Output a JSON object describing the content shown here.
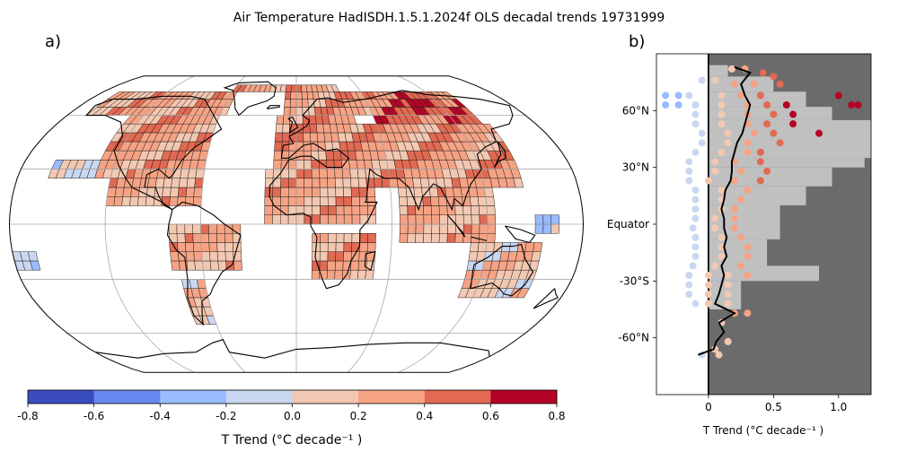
{
  "figure": {
    "title": "Air Temperature HadISDH.1.5.1.2024f OLS decadal trends 19731999",
    "panel_a_label": "a)",
    "panel_b_label": "b)"
  },
  "colorbar": {
    "label": "T Trend (°C decade⁻¹ )",
    "ticks": [
      "-0.8",
      "-0.6",
      "-0.4",
      "-0.2",
      "0.0",
      "0.2",
      "0.4",
      "0.6",
      "0.8"
    ],
    "bins": [
      -0.8,
      -0.6,
      -0.4,
      -0.2,
      0.0,
      0.2,
      0.4,
      0.6,
      0.8
    ],
    "colors": [
      "#3b4cc0",
      "#6788ee",
      "#9abbff",
      "#c9d7f0",
      "#f3c8b2",
      "#f6a385",
      "#e26952",
      "#b40426"
    ]
  },
  "chart_data": [
    {
      "type": "heatmap",
      "panel": "a",
      "projection": "Robinson",
      "description_variable": "T Trend",
      "grid_lines": "on",
      "cell_size_deg": [
        5,
        5
      ],
      "value_ranges": [
        {
          "lat": [
            75,
            80
          ],
          "lon": [
            -60,
            40
          ],
          "value": 0.3
        },
        {
          "lat": [
            60,
            75
          ],
          "lon": [
            -165,
            -55
          ],
          "value": 0.25
        },
        {
          "lat": [
            60,
            75
          ],
          "lon": [
            -10,
            60
          ],
          "value": 0.3
        },
        {
          "lat": [
            55,
            75
          ],
          "lon": [
            60,
            140
          ],
          "value": 0.45
        },
        {
          "lat": [
            60,
            70
          ],
          "lon": [
            95,
            125
          ],
          "value": 0.65
        },
        {
          "lat": [
            25,
            60
          ],
          "lon": [
            -130,
            -60
          ],
          "value": 0.3
        },
        {
          "lat": [
            30,
            60
          ],
          "lon": [
            -15,
            45
          ],
          "value": 0.35
        },
        {
          "lat": [
            20,
            55
          ],
          "lon": [
            45,
            145
          ],
          "value": 0.3
        },
        {
          "lat": [
            25,
            35
          ],
          "lon": [
            -160,
            -130
          ],
          "value": -0.1
        },
        {
          "lat": [
            10,
            30
          ],
          "lon": [
            -120,
            -60
          ],
          "value": 0.2
        },
        {
          "lat": [
            0,
            30
          ],
          "lon": [
            -20,
            50
          ],
          "value": 0.25
        },
        {
          "lat": [
            -10,
            25
          ],
          "lon": [
            65,
            125
          ],
          "value": 0.2
        },
        {
          "lat": [
            -25,
            0
          ],
          "lon": [
            -80,
            -35
          ],
          "value": 0.2
        },
        {
          "lat": [
            -30,
            -5
          ],
          "lon": [
            10,
            50
          ],
          "value": 0.25
        },
        {
          "lat": [
            -40,
            -10
          ],
          "lon": [
            110,
            155
          ],
          "value": 0.15
        },
        {
          "lat": [
            -55,
            -30
          ],
          "lon": [
            -75,
            -60
          ],
          "value": 0.1
        },
        {
          "lat": [
            -25,
            -15
          ],
          "lon": [
            -180,
            -165
          ],
          "value": -0.1
        },
        {
          "lat": [
            -5,
            5
          ],
          "lon": [
            150,
            165
          ],
          "value": -0.15
        }
      ]
    },
    {
      "type": "scatter",
      "panel": "b",
      "xlabel": "T Trend (°C decade⁻¹ )",
      "xlim": [
        -0.4,
        1.25
      ],
      "ylim": [
        -90,
        90
      ],
      "xticks": [
        "0",
        "0.5",
        "1.0"
      ],
      "yticks": [
        "60°N",
        "30°N",
        "Equator",
        "-30°S",
        "-60°N"
      ],
      "ytick_values": [
        60,
        30,
        0,
        -30,
        -60
      ],
      "points": [
        [
          0.18,
          82
        ],
        [
          0.28,
          82
        ],
        [
          0.42,
          80
        ],
        [
          0.5,
          78
        ],
        [
          -0.05,
          76
        ],
        [
          0.05,
          76
        ],
        [
          0.2,
          74
        ],
        [
          0.35,
          74
        ],
        [
          0.55,
          74
        ],
        [
          -0.33,
          68
        ],
        [
          -0.23,
          68
        ],
        [
          -0.15,
          68
        ],
        [
          0.1,
          68
        ],
        [
          0.25,
          68
        ],
        [
          0.4,
          68
        ],
        [
          1.0,
          68
        ],
        [
          -0.33,
          63
        ],
        [
          -0.23,
          63
        ],
        [
          -0.1,
          63
        ],
        [
          0.1,
          63
        ],
        [
          0.3,
          63
        ],
        [
          0.45,
          63
        ],
        [
          0.6,
          63
        ],
        [
          1.1,
          63
        ],
        [
          1.15,
          63
        ],
        [
          -0.1,
          58
        ],
        [
          0.1,
          58
        ],
        [
          0.3,
          58
        ],
        [
          0.5,
          58
        ],
        [
          0.65,
          58
        ],
        [
          -0.1,
          53
        ],
        [
          0.1,
          53
        ],
        [
          0.3,
          53
        ],
        [
          0.45,
          53
        ],
        [
          0.65,
          53
        ],
        [
          -0.05,
          48
        ],
        [
          0.15,
          48
        ],
        [
          0.35,
          48
        ],
        [
          0.5,
          48
        ],
        [
          0.85,
          48
        ],
        [
          -0.05,
          43
        ],
        [
          0.15,
          43
        ],
        [
          0.3,
          43
        ],
        [
          0.55,
          43
        ],
        [
          -0.1,
          38
        ],
        [
          0.1,
          38
        ],
        [
          0.3,
          38
        ],
        [
          0.4,
          38
        ],
        [
          -0.15,
          33
        ],
        [
          0.05,
          33
        ],
        [
          0.2,
          33
        ],
        [
          0.4,
          33
        ],
        [
          -0.15,
          28
        ],
        [
          0.05,
          28
        ],
        [
          0.25,
          28
        ],
        [
          0.45,
          28
        ],
        [
          -0.15,
          23
        ],
        [
          0.0,
          23
        ],
        [
          0.2,
          23
        ],
        [
          0.4,
          23
        ],
        [
          -0.1,
          18
        ],
        [
          0.1,
          18
        ],
        [
          0.3,
          18
        ],
        [
          -0.1,
          13
        ],
        [
          0.1,
          13
        ],
        [
          0.25,
          13
        ],
        [
          -0.1,
          8
        ],
        [
          0.1,
          8
        ],
        [
          0.2,
          8
        ],
        [
          -0.1,
          3
        ],
        [
          0.05,
          3
        ],
        [
          0.2,
          3
        ],
        [
          -0.12,
          -2
        ],
        [
          0.05,
          -2
        ],
        [
          0.2,
          -2
        ],
        [
          -0.1,
          -7
        ],
        [
          0.1,
          -7
        ],
        [
          0.25,
          -7
        ],
        [
          -0.1,
          -12
        ],
        [
          0.1,
          -12
        ],
        [
          0.3,
          -12
        ],
        [
          -0.1,
          -17
        ],
        [
          0.1,
          -17
        ],
        [
          0.3,
          -17
        ],
        [
          -0.12,
          -22
        ],
        [
          0.05,
          -22
        ],
        [
          0.25,
          -22
        ],
        [
          -0.15,
          -27
        ],
        [
          0.0,
          -27
        ],
        [
          0.15,
          -27
        ],
        [
          0.3,
          -27
        ],
        [
          -0.15,
          -32
        ],
        [
          0.0,
          -32
        ],
        [
          0.15,
          -32
        ],
        [
          -0.15,
          -37
        ],
        [
          0.0,
          -37
        ],
        [
          0.15,
          -37
        ],
        [
          -0.1,
          -42
        ],
        [
          0.0,
          -42
        ],
        [
          0.15,
          -42
        ],
        [
          0.2,
          -47
        ],
        [
          0.3,
          -47
        ],
        [
          0.1,
          -52
        ],
        [
          0.15,
          -62
        ],
        [
          0.05,
          -66
        ],
        [
          -0.05,
          -69
        ],
        [
          0.08,
          -69
        ]
      ],
      "mean_line": {
        "lat": [
          83,
          80,
          74,
          68,
          63,
          58,
          53,
          48,
          43,
          38,
          33,
          28,
          23,
          18,
          13,
          8,
          3,
          -2,
          -7,
          -12,
          -17,
          -22,
          -27,
          -32,
          -37,
          -42,
          -47,
          -52,
          -57,
          -62,
          -66,
          -69
        ],
        "value": [
          0.2,
          0.32,
          0.25,
          0.28,
          0.32,
          0.3,
          0.28,
          0.26,
          0.22,
          0.2,
          0.18,
          0.18,
          0.17,
          0.13,
          0.12,
          0.1,
          0.12,
          0.12,
          0.14,
          0.12,
          0.14,
          0.1,
          0.12,
          0.1,
          0.08,
          0.05,
          0.2,
          0.08,
          0.12,
          0.06,
          0.04,
          -0.08
        ]
      },
      "coverage_rows": [
        {
          "lat": [
            -45,
            -30
          ],
          "value": 0.25
        },
        {
          "lat": [
            -30,
            -22
          ],
          "value": 0.85
        },
        {
          "lat": [
            -22,
            -8
          ],
          "value": 0.45
        },
        {
          "lat": [
            -8,
            10
          ],
          "value": 0.55
        },
        {
          "lat": [
            10,
            20
          ],
          "value": 0.75
        },
        {
          "lat": [
            20,
            30
          ],
          "value": 0.95
        },
        {
          "lat": [
            30,
            35
          ],
          "value": 1.2
        },
        {
          "lat": [
            35,
            55
          ],
          "value": 1.25
        },
        {
          "lat": [
            55,
            62
          ],
          "value": 0.95
        },
        {
          "lat": [
            62,
            70
          ],
          "value": 0.75
        },
        {
          "lat": [
            70,
            78
          ],
          "value": 0.5
        },
        {
          "lat": [
            78,
            84
          ],
          "value": 0.15
        }
      ]
    }
  ]
}
